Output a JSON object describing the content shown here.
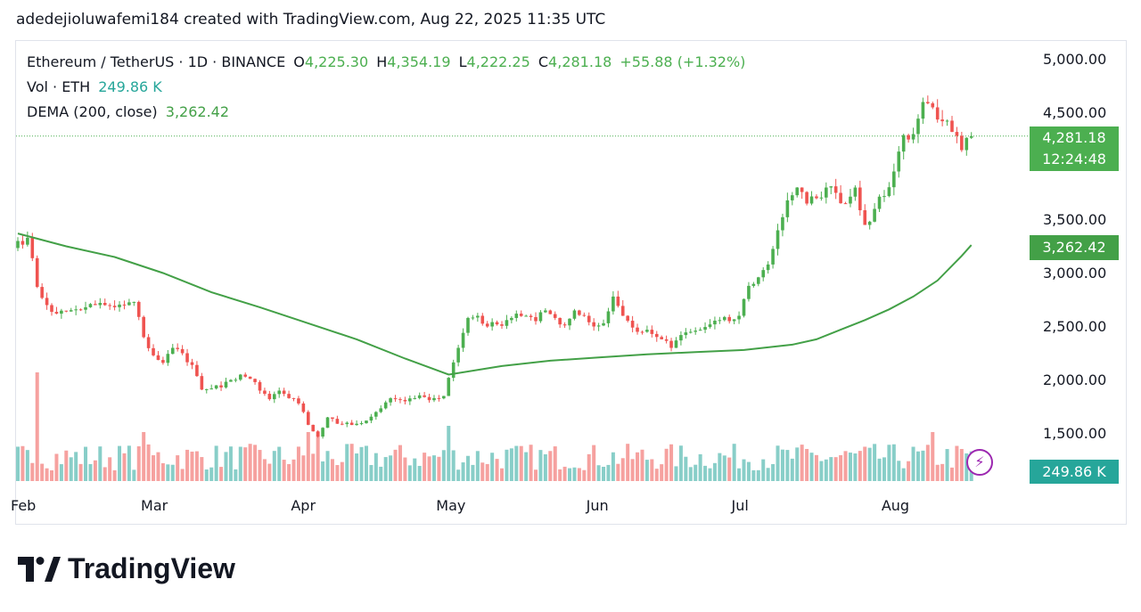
{
  "header": {
    "text": "adedejioluwafemi184 created with TradingView.com, Aug 22, 2025 11:35 UTC"
  },
  "legend": {
    "symbol": "Ethereum / TetherUS · 1D · BINANCE",
    "o_label": "O",
    "o_value": "4,225.30",
    "h_label": "H",
    "h_value": "4,354.19",
    "l_label": "L",
    "l_value": "4,222.25",
    "c_label": "C",
    "c_value": "4,281.18",
    "change": "+55.88 (+1.32%)",
    "vol_label": "Vol · ETH",
    "vol_value": "249.86 K",
    "dema_label": "DEMA (200, close)",
    "dema_value": "3,262.42"
  },
  "tags": {
    "last_price": "4,281.18",
    "countdown": "12:24:48",
    "dema": "3,262.42",
    "volume": "249.86 K"
  },
  "brand": {
    "name": "TradingView"
  },
  "colors": {
    "up": "#4caf50",
    "down": "#ef5350",
    "dema": "#43a047",
    "vol_up": "#26a69a",
    "vol_down": "#ef5350",
    "accent": "#9c27b0"
  },
  "chart_data": {
    "type": "candlestick",
    "title": "Ethereum / TetherUS · 1D · BINANCE",
    "y_ticks": [
      "1,500.00",
      "2,000.00",
      "2,500.00",
      "3,000.00",
      "3,500.00",
      "4,500.00",
      "5,000.00"
    ],
    "y_tick_values": [
      1500,
      2000,
      2500,
      3000,
      3500,
      4500,
      5000
    ],
    "ylim": [
      1125,
      5060
    ],
    "x_ticks": [
      "Feb",
      "Mar",
      "Apr",
      "May",
      "Jun",
      "Jul",
      "Aug"
    ],
    "x_tick_days": [
      0,
      28,
      59,
      89,
      120,
      150,
      181
    ],
    "close_anchors": [
      [
        0,
        3300
      ],
      [
        2,
        3330
      ],
      [
        4,
        2870
      ],
      [
        6,
        2700
      ],
      [
        8,
        2620
      ],
      [
        10,
        2640
      ],
      [
        12,
        2660
      ],
      [
        14,
        2680
      ],
      [
        16,
        2700
      ],
      [
        18,
        2700
      ],
      [
        20,
        2680
      ],
      [
        22,
        2700
      ],
      [
        24,
        2730
      ],
      [
        26,
        2400
      ],
      [
        28,
        2230
      ],
      [
        30,
        2160
      ],
      [
        32,
        2300
      ],
      [
        34,
        2250
      ],
      [
        36,
        2140
      ],
      [
        38,
        1910
      ],
      [
        40,
        1920
      ],
      [
        42,
        1930
      ],
      [
        44,
        2000
      ],
      [
        46,
        2050
      ],
      [
        48,
        2010
      ],
      [
        50,
        1900
      ],
      [
        52,
        1820
      ],
      [
        54,
        1900
      ],
      [
        56,
        1830
      ],
      [
        58,
        1780
      ],
      [
        60,
        1580
      ],
      [
        62,
        1470
      ],
      [
        64,
        1650
      ],
      [
        66,
        1590
      ],
      [
        68,
        1600
      ],
      [
        70,
        1590
      ],
      [
        72,
        1620
      ],
      [
        74,
        1700
      ],
      [
        76,
        1790
      ],
      [
        78,
        1820
      ],
      [
        80,
        1800
      ],
      [
        82,
        1830
      ],
      [
        84,
        1840
      ],
      [
        86,
        1830
      ],
      [
        88,
        1850
      ],
      [
        89,
        2020
      ],
      [
        91,
        2300
      ],
      [
        93,
        2580
      ],
      [
        95,
        2600
      ],
      [
        97,
        2500
      ],
      [
        99,
        2520
      ],
      [
        101,
        2560
      ],
      [
        103,
        2620
      ],
      [
        105,
        2600
      ],
      [
        107,
        2550
      ],
      [
        109,
        2650
      ],
      [
        111,
        2580
      ],
      [
        113,
        2510
      ],
      [
        115,
        2650
      ],
      [
        117,
        2600
      ],
      [
        119,
        2500
      ],
      [
        121,
        2530
      ],
      [
        123,
        2780
      ],
      [
        125,
        2600
      ],
      [
        127,
        2490
      ],
      [
        129,
        2450
      ],
      [
        131,
        2430
      ],
      [
        133,
        2380
      ],
      [
        135,
        2300
      ],
      [
        137,
        2420
      ],
      [
        139,
        2450
      ],
      [
        141,
        2470
      ],
      [
        143,
        2520
      ],
      [
        145,
        2560
      ],
      [
        147,
        2550
      ],
      [
        149,
        2600
      ],
      [
        151,
        2880
      ],
      [
        153,
        2960
      ],
      [
        155,
        3080
      ],
      [
        157,
        3400
      ],
      [
        159,
        3680
      ],
      [
        161,
        3800
      ],
      [
        163,
        3650
      ],
      [
        165,
        3700
      ],
      [
        167,
        3800
      ],
      [
        169,
        3750
      ],
      [
        171,
        3650
      ],
      [
        173,
        3800
      ],
      [
        175,
        3450
      ],
      [
        177,
        3600
      ],
      [
        179,
        3720
      ],
      [
        181,
        3950
      ],
      [
        183,
        4290
      ],
      [
        185,
        4300
      ],
      [
        187,
        4600
      ],
      [
        189,
        4550
      ],
      [
        191,
        4420
      ],
      [
        193,
        4320
      ],
      [
        195,
        4150
      ],
      [
        197,
        4281
      ]
    ],
    "dema_anchors": [
      [
        0,
        3370
      ],
      [
        10,
        3250
      ],
      [
        20,
        3150
      ],
      [
        30,
        3000
      ],
      [
        40,
        2820
      ],
      [
        50,
        2680
      ],
      [
        60,
        2530
      ],
      [
        70,
        2380
      ],
      [
        80,
        2200
      ],
      [
        89,
        2050
      ],
      [
        100,
        2130
      ],
      [
        110,
        2180
      ],
      [
        120,
        2210
      ],
      [
        130,
        2240
      ],
      [
        140,
        2260
      ],
      [
        150,
        2280
      ],
      [
        160,
        2330
      ],
      [
        165,
        2380
      ],
      [
        170,
        2470
      ],
      [
        175,
        2560
      ],
      [
        180,
        2660
      ],
      [
        185,
        2780
      ],
      [
        190,
        2930
      ],
      [
        195,
        3160
      ],
      [
        197,
        3262
      ]
    ],
    "volume": {
      "label": "Vol · ETH",
      "last": "249.86 K"
    },
    "dema": {
      "label": "DEMA (200, close)",
      "last": "3,262.42"
    },
    "last": {
      "o": 4225.3,
      "h": 4354.19,
      "l": 4222.25,
      "c": 4281.18
    }
  }
}
